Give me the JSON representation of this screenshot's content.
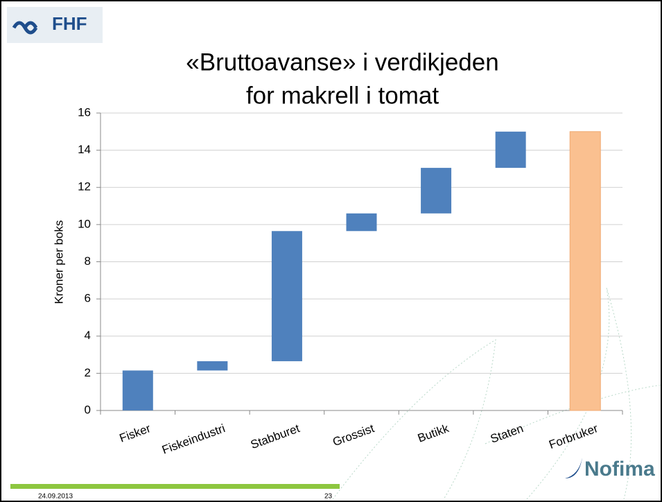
{
  "slide": {
    "logo_left": "FHF",
    "logo_right": "Nofima",
    "date": "24.09.2013",
    "page": "23"
  },
  "chart_data": {
    "type": "waterfall",
    "title": [
      "«Bruttoavanse» i verdikjeden",
      "for makrell i tomat"
    ],
    "y_label": "Kroner per boks",
    "categories": [
      "Fisker",
      "Fiskeindustri",
      "Stabburet",
      "Grossist",
      "Butikk",
      "Staten",
      "Forbruker"
    ],
    "series": [
      {
        "color": "#4f81bd",
        "values": [
          2.15,
          0.5,
          7.0,
          0.95,
          2.45,
          1.95,
          null
        ]
      },
      {
        "color": "#fac090",
        "values": [
          null,
          null,
          null,
          null,
          null,
          null,
          15.0
        ]
      }
    ],
    "ylim": [
      0,
      16
    ],
    "yticks": [
      0,
      2,
      4,
      6,
      8,
      10,
      12,
      14,
      16
    ],
    "grid": true
  }
}
